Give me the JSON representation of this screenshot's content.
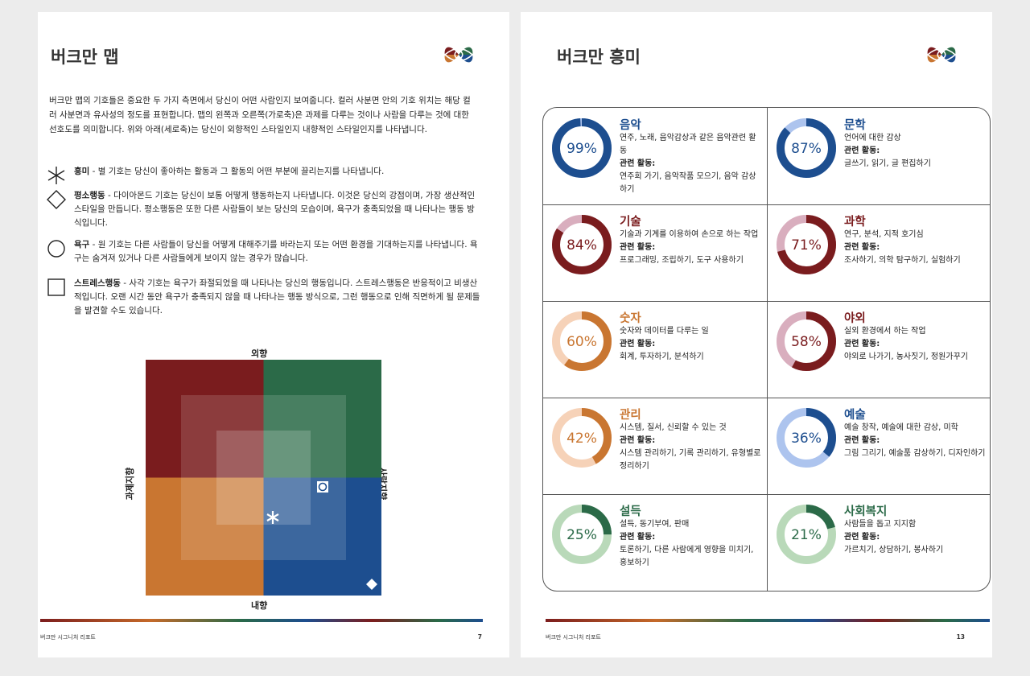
{
  "left_page": {
    "title": "버크만 맵",
    "intro": "버크만 맵의 기호들은 중요한 두 가지 측면에서 당신이 어떤 사람인지 보여줍니다. 컬러 사분면 안의 기호 위치는 해당 컬러 사분면과 유사성의 정도를 표현합니다. 맵의 왼쪽과 오른쪽(가로축)은 과제를 다루는 것이나 사람을 다루는 것에 대한 선호도를 의미합니다. 위와 아래(세로축)는 당신이 외향적인 스타일인지 내향적인 스타일인지를 나타냅니다.",
    "legend": [
      {
        "icon": "star-icon",
        "term": "흥미",
        "text": " - 별 기호는 당신이 좋아하는 활동과 그 활동의 어떤 부분에 끌리는지를 나타냅니다."
      },
      {
        "icon": "diamond-icon",
        "term": "평소행동",
        "text": " - 다이아몬드 기호는 당신이 보통 어떻게 행동하는지 나타냅니다. 이것은 당신의 강점이며, 가장 생산적인 스타일을 만듭니다. 평소행동은 또한 다른 사람들이 보는 당신의 모습이며, 욕구가 충족되었을 때 나타나는 행동 방식입니다."
      },
      {
        "icon": "circle-icon",
        "term": "욕구",
        "text": " - 원 기호는 다른 사람들이 당신을 어떻게 대해주기를 바라는지 또는 어떤 환경을 기대하는지를 나타냅니다. 욕구는 숨겨져 있거나 다른 사람들에게 보이지 않는 경우가 많습니다."
      },
      {
        "icon": "square-icon",
        "term": "스트레스행동",
        "text": " - 사각 기호는 욕구가 좌절되었을 때 나타나는 당신의 행동입니다. 스트레스행동은 반응적이고 비생산적입니다. 오랜 시간 동안 욕구가 충족되지 않을 때 나타나는 행동 방식으로, 그런 행동으로 인해 직면하게 될 문제들을 발견할 수도 있습니다."
      }
    ],
    "map": {
      "top_label": "외향",
      "bottom_label": "내향",
      "left_label": "과제지향",
      "right_label": "사람지향",
      "colors": {
        "red": "#7a1c1e",
        "green": "#2b6a48",
        "orange": "#c97631",
        "blue": "#1d4e8f"
      }
    },
    "footer": "버크만 시그니처 리포트",
    "page_number": "7"
  },
  "right_page": {
    "title": "버크만 흥미",
    "related_label": "관련 활동:",
    "interests": [
      {
        "name": "음악",
        "percent": "99%",
        "value": 99,
        "color": "#1d4e8f",
        "light": "#adc4ee",
        "desc": "연주, 노래, 음악감상과 같은 음악관련 활동",
        "activities": "연주회 가기, 음악작품 모으기, 음악 감상하기"
      },
      {
        "name": "문학",
        "percent": "87%",
        "value": 87,
        "color": "#1d4e8f",
        "light": "#adc4ee",
        "desc": "언어에 대한 감상",
        "activities": "글쓰기, 읽기, 글 편집하기"
      },
      {
        "name": "기술",
        "percent": "84%",
        "value": 84,
        "color": "#7a1c1e",
        "light": "#d9aebe",
        "desc": "기술과 기계를 이용하여 손으로 하는 작업",
        "activities": "프로그래밍, 조립하기, 도구 사용하기"
      },
      {
        "name": "과학",
        "percent": "71%",
        "value": 71,
        "color": "#7a1c1e",
        "light": "#d9aebe",
        "desc": "연구, 분석, 지적 호기심",
        "activities": "조사하기, 의학 탐구하기, 실험하기"
      },
      {
        "name": "숫자",
        "percent": "60%",
        "value": 60,
        "color": "#c97631",
        "light": "#f6d2b8",
        "desc": "숫자와 데이터를 다루는 일",
        "activities": "회계, 투자하기, 분석하기"
      },
      {
        "name": "야외",
        "percent": "58%",
        "value": 58,
        "color": "#7a1c1e",
        "light": "#d9aebe",
        "desc": "실외 환경에서 하는 작업",
        "activities": "야외로 나가기, 농사짓기, 정원가꾸기"
      },
      {
        "name": "관리",
        "percent": "42%",
        "value": 42,
        "color": "#c97631",
        "light": "#f6d2b8",
        "desc": "시스템, 질서, 신뢰할 수 있는 것",
        "activities": "시스템 관리하기, 기록 관리하기, 유형별로 정리하기"
      },
      {
        "name": "예술",
        "percent": "36%",
        "value": 36,
        "color": "#1d4e8f",
        "light": "#adc4ee",
        "desc": "예술 창작, 예술에 대한 감상, 미학",
        "activities": "그림 그리기, 예술품 감상하기, 디자인하기"
      },
      {
        "name": "설득",
        "percent": "25%",
        "value": 25,
        "color": "#2b6a48",
        "light": "#b9d9b9",
        "desc": "설득, 동기부여, 판매",
        "activities": "토론하기, 다른 사람에게 영향을 미치기, 홍보하기"
      },
      {
        "name": "사회복지",
        "percent": "21%",
        "value": 21,
        "color": "#2b6a48",
        "light": "#b9d9b9",
        "desc": "사람들을 돕고 지지함",
        "activities": "가르치기, 상담하기, 봉사하기"
      }
    ],
    "footer": "버크만 시그니처 리포트",
    "page_number": "13"
  }
}
